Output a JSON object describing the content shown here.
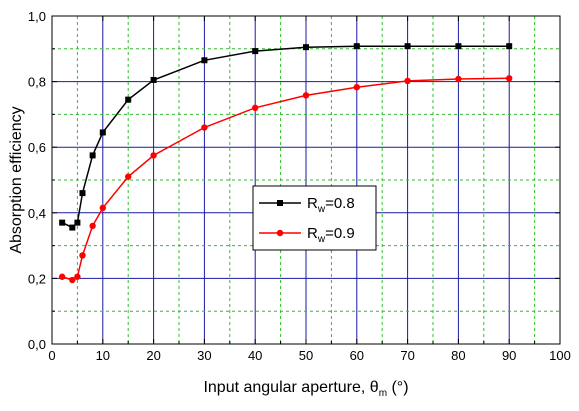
{
  "chart_data": {
    "type": "line",
    "xlabel": "Input angular aperture, θ",
    "xlabel_sub": "m",
    "xlabel_unit": " (°)",
    "ylabel": "Absorption efficiency",
    "xlim": [
      0,
      100
    ],
    "ylim": [
      0,
      1.0
    ],
    "x_ticks": [
      0,
      10,
      20,
      30,
      40,
      50,
      60,
      70,
      80,
      90,
      100
    ],
    "x_tick_labels": [
      "0",
      "10",
      "20",
      "30",
      "40",
      "50",
      "60",
      "70",
      "80",
      "90",
      "100"
    ],
    "y_ticks": [
      0,
      0.2,
      0.4,
      0.6,
      0.8,
      1.0
    ],
    "y_tick_labels": [
      "0,0",
      "0,2",
      "0,4",
      "0,6",
      "0,8",
      "1,0"
    ],
    "grid": true,
    "legend_position": "center",
    "series": [
      {
        "name": "R=0.8",
        "name_main": "R",
        "name_sub": "w",
        "name_suffix": "=0.8",
        "color": "#000000",
        "marker": "square",
        "x": [
          2,
          4,
          5,
          6,
          8,
          10,
          15,
          20,
          30,
          40,
          50,
          60,
          70,
          80,
          90
        ],
        "y": [
          0.37,
          0.355,
          0.37,
          0.46,
          0.575,
          0.645,
          0.745,
          0.805,
          0.865,
          0.893,
          0.905,
          0.908,
          0.908,
          0.908,
          0.908
        ]
      },
      {
        "name": "R=0.9",
        "name_main": "R",
        "name_sub": "w",
        "name_suffix": "=0.9",
        "color": "#ff0000",
        "marker": "circle",
        "x": [
          2,
          4,
          5,
          6,
          8,
          10,
          15,
          20,
          30,
          40,
          50,
          60,
          70,
          80,
          90
        ],
        "y": [
          0.205,
          0.195,
          0.205,
          0.27,
          0.36,
          0.415,
          0.51,
          0.575,
          0.66,
          0.72,
          0.758,
          0.783,
          0.802,
          0.808,
          0.81
        ]
      }
    ]
  }
}
